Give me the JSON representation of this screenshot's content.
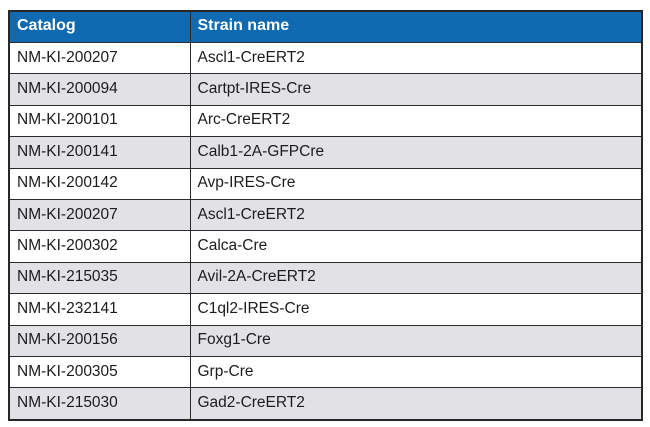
{
  "table": {
    "columns": [
      {
        "label": "Catalog"
      },
      {
        "label": "Strain name"
      }
    ],
    "rows": [
      {
        "catalog": "NM-KI-200207",
        "strain": "Ascl1-CreERT2"
      },
      {
        "catalog": "NM-KI-200094",
        "strain": "Cartpt-IRES-Cre"
      },
      {
        "catalog": "NM-KI-200101",
        "strain": "Arc-CreERT2"
      },
      {
        "catalog": "NM-KI-200141",
        "strain": "Calb1-2A-GFPCre"
      },
      {
        "catalog": "NM-KI-200142",
        "strain": "Avp-IRES-Cre"
      },
      {
        "catalog": "NM-KI-200207",
        "strain": "Ascl1-CreERT2"
      },
      {
        "catalog": "NM-KI-200302",
        "strain": "Calca-Cre"
      },
      {
        "catalog": "NM-KI-215035",
        "strain": "Avil-2A-CreERT2"
      },
      {
        "catalog": "NM-KI-232141",
        "strain": "C1ql2-IRES-Cre"
      },
      {
        "catalog": "NM-KI-200156",
        "strain": "Foxg1-Cre"
      },
      {
        "catalog": "NM-KI-200305",
        "strain": "Grp-Cre"
      },
      {
        "catalog": "NM-KI-215030",
        "strain": "Gad2-CreERT2"
      }
    ],
    "colors": {
      "header_bg": "#0f6ab1",
      "header_text": "#ffffff",
      "row_bg": "#ffffff",
      "row_alt_bg": "#e2e2e6",
      "border": "#2b2b2b",
      "cell_text": "#1c1c1c"
    }
  }
}
